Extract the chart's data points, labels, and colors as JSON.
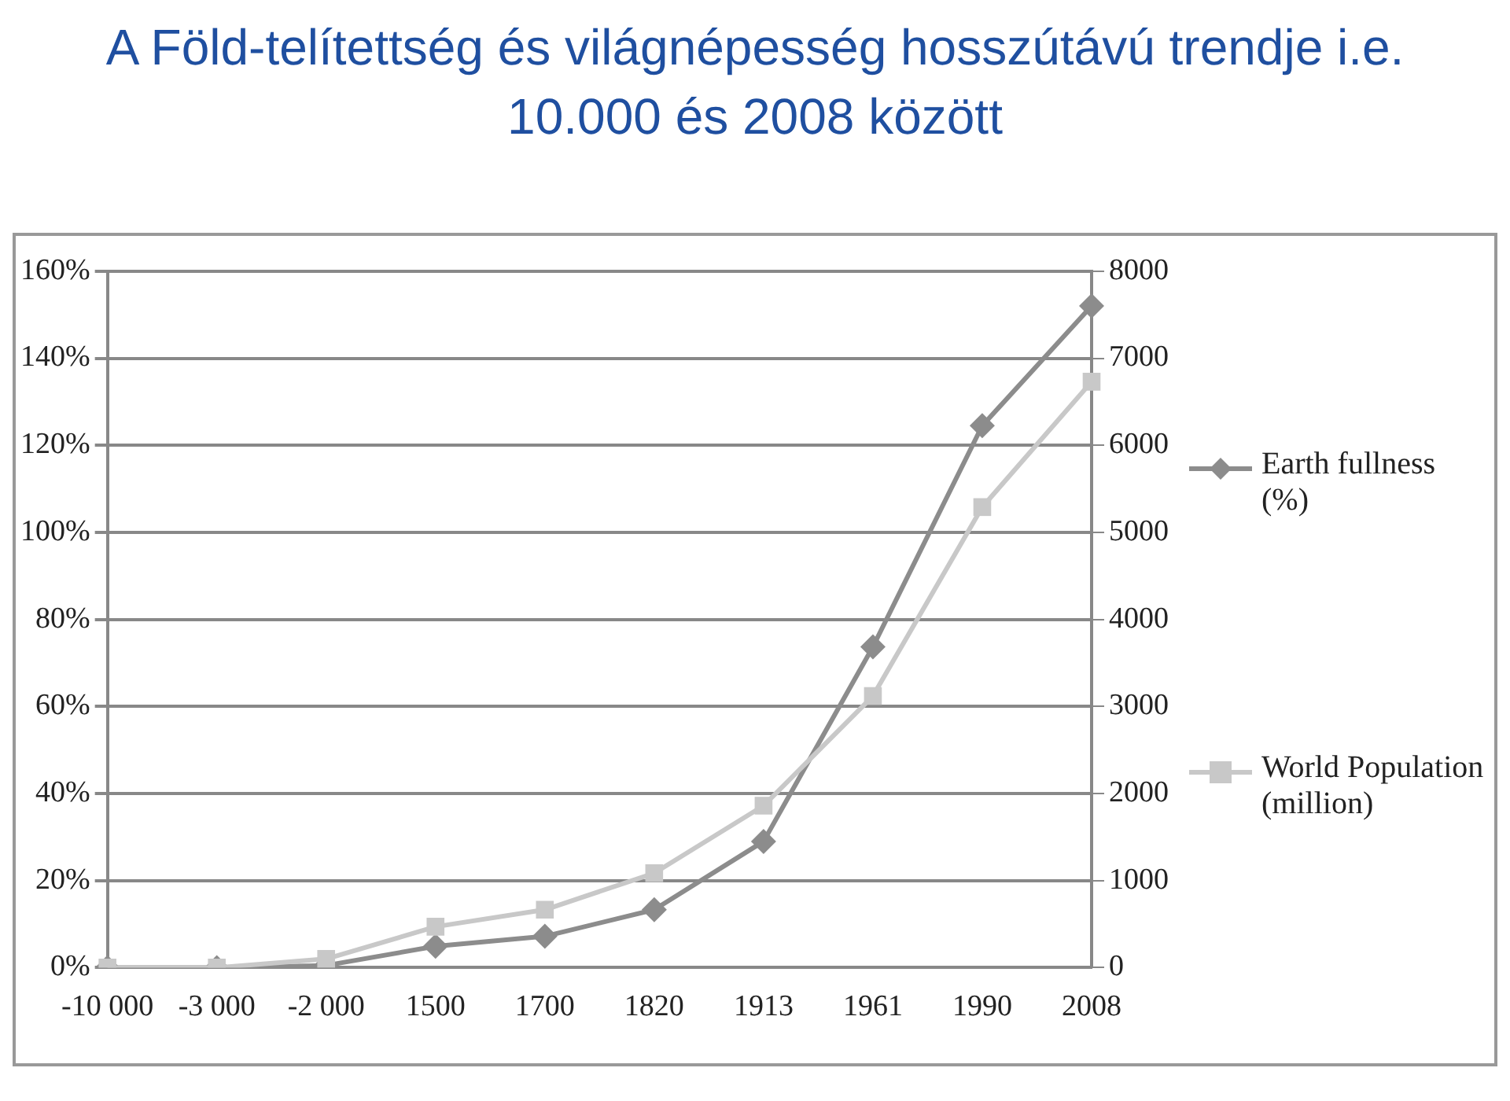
{
  "chart_data": {
    "type": "line",
    "title": "A Föld-telítettség és világnépesség hosszútávú trendje i.e. 10.000 és 2008 között",
    "categories": [
      "-10 000",
      "-3 000",
      "-2 000",
      "1500",
      "1700",
      "1820",
      "1913",
      "1961",
      "1990",
      "2008"
    ],
    "series": [
      {
        "name": "Earth fullness (%)",
        "color": "#8c8c8c",
        "marker": "diamond",
        "values": [
          0,
          0,
          0.5,
          4.9,
          7.2,
          13.3,
          29,
          73.7,
          124.5,
          152
        ]
      },
      {
        "name": "World Population (million)",
        "color": "#c8c8c8",
        "marker": "square",
        "axis": "y2",
        "values": [
          0,
          0,
          100,
          470,
          665,
          1085,
          1860,
          3120,
          5290,
          6730
        ]
      }
    ],
    "ylim": [
      0,
      160
    ],
    "yticks": [
      {
        "value": 0,
        "label": "0%"
      },
      {
        "value": 20,
        "label": "20%"
      },
      {
        "value": 40,
        "label": "40%"
      },
      {
        "value": 60,
        "label": "60%"
      },
      {
        "value": 80,
        "label": "80%"
      },
      {
        "value": 100,
        "label": "100%"
      },
      {
        "value": 120,
        "label": "120%"
      },
      {
        "value": 140,
        "label": "140%"
      },
      {
        "value": 160,
        "label": "160%"
      }
    ],
    "y2lim": [
      0,
      8000
    ],
    "y2ticks": [
      0,
      1000,
      2000,
      3000,
      4000,
      5000,
      6000,
      7000,
      8000
    ],
    "grid": "y",
    "legend": "right"
  }
}
